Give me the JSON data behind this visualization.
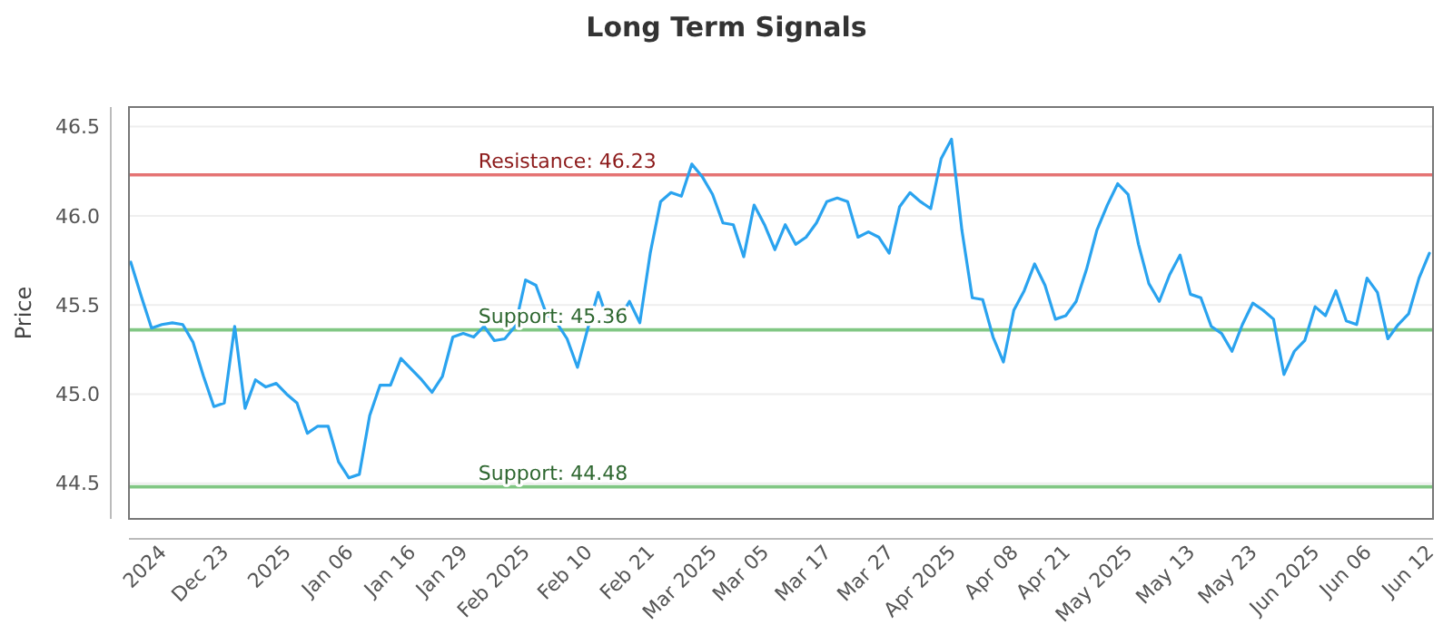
{
  "chart_data": {
    "type": "line",
    "title": "Long Term Signals",
    "ylabel": "Price",
    "categories": [
      null,
      null,
      null,
      "2024",
      null,
      null,
      null,
      null,
      null,
      "Dec 23",
      null,
      null,
      null,
      null,
      null,
      "2025",
      null,
      null,
      null,
      null,
      null,
      "Jan 06",
      null,
      null,
      null,
      null,
      null,
      "Jan 16",
      null,
      null,
      null,
      null,
      "Jan 29",
      null,
      null,
      null,
      null,
      null,
      "Feb 2025",
      null,
      null,
      null,
      null,
      null,
      "Feb 10",
      null,
      null,
      null,
      null,
      null,
      "Feb 21",
      null,
      null,
      null,
      null,
      null,
      "Mar 2025",
      null,
      null,
      null,
      null,
      "Mar 05",
      null,
      null,
      null,
      null,
      null,
      "Mar 17",
      null,
      null,
      null,
      null,
      null,
      "Mar 27",
      null,
      null,
      null,
      null,
      null,
      "Apr 2025",
      null,
      null,
      null,
      null,
      null,
      "Apr 08",
      null,
      null,
      null,
      null,
      "Apr 21",
      null,
      null,
      null,
      null,
      null,
      "May 2025",
      null,
      null,
      null,
      null,
      null,
      "May 13",
      null,
      null,
      null,
      null,
      null,
      "May 23",
      null,
      null,
      null,
      null,
      null,
      "Jun 2025",
      null,
      null,
      null,
      null,
      "Jun 06",
      null,
      null,
      null,
      null,
      null,
      "Jun 12"
    ],
    "series": [
      {
        "color": "#2aa3ef",
        "values": [
          45.74,
          45.55,
          45.37,
          45.39,
          45.4,
          45.39,
          45.29,
          45.1,
          44.93,
          44.95,
          45.38,
          44.92,
          45.08,
          45.04,
          45.06,
          45.0,
          44.95,
          44.78,
          44.82,
          44.82,
          44.62,
          44.53,
          44.55,
          44.88,
          45.05,
          45.05,
          45.2,
          45.14,
          45.08,
          45.01,
          45.1,
          45.32,
          45.34,
          45.32,
          45.38,
          45.3,
          45.31,
          45.38,
          45.64,
          45.61,
          45.45,
          45.4,
          45.31,
          45.15,
          45.37,
          45.57,
          45.4,
          45.42,
          45.52,
          45.4,
          45.79,
          46.08,
          46.13,
          46.11,
          46.29,
          46.22,
          46.12,
          45.96,
          45.95,
          45.77,
          46.06,
          45.95,
          45.81,
          45.95,
          45.84,
          45.88,
          45.96,
          46.08,
          46.1,
          46.08,
          45.88,
          45.91,
          45.88,
          45.79,
          46.05,
          46.13,
          46.08,
          46.04,
          46.32,
          46.43,
          45.92,
          45.54,
          45.53,
          45.32,
          45.18,
          45.47,
          45.58,
          45.73,
          45.61,
          45.42,
          45.44,
          45.52,
          45.7,
          45.92,
          46.06,
          46.18,
          46.12,
          45.84,
          45.62,
          45.52,
          45.67,
          45.78,
          45.56,
          45.54,
          45.38,
          45.34,
          45.24,
          45.39,
          45.51,
          45.47,
          45.42,
          45.11,
          45.24,
          45.3,
          45.49,
          45.44,
          45.58,
          45.41,
          45.39,
          45.65,
          45.57,
          45.31,
          45.39,
          45.45,
          45.65,
          45.79
        ]
      }
    ],
    "ylim": [
      44.3,
      46.61
    ],
    "yticks": [
      {
        "value": 44.5,
        "label": "44.5"
      },
      {
        "value": 45,
        "label": "45.0"
      },
      {
        "value": 45.5,
        "label": "45.5"
      },
      {
        "value": 46,
        "label": "46.0"
      },
      {
        "value": 46.5,
        "label": "46.5"
      }
    ],
    "grid": "y",
    "marker": "none",
    "line_style": "solid",
    "ref_lines": [
      {
        "axis": "y",
        "value": 46.23,
        "label": "Resistance: 46.23",
        "color": "#e57373"
      },
      {
        "axis": "y",
        "value": 45.36,
        "label": "Support: 45.36",
        "color": "#81c784"
      },
      {
        "axis": "y",
        "value": 44.48,
        "label": "Support: 44.48",
        "color": "#81c784"
      }
    ]
  }
}
